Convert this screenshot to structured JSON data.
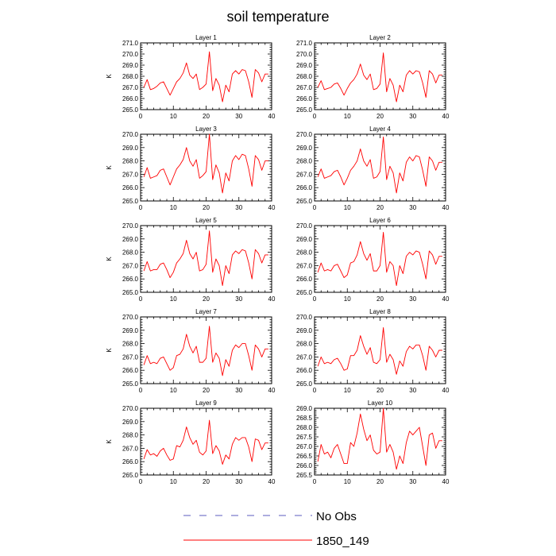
{
  "figure": {
    "title": "soil temperature"
  },
  "legend": {
    "items": [
      {
        "label": "No Obs",
        "color": "#5b5bbf",
        "style": "dashed"
      },
      {
        "label": "1850_149",
        "color": "#ff0000",
        "style": "solid"
      }
    ]
  },
  "chart_data": [
    {
      "type": "line",
      "title": "Layer 1",
      "xlabel": "",
      "ylabel": "K",
      "xlim": [
        0,
        40
      ],
      "ylim": [
        265,
        271
      ],
      "xticks": [
        0,
        10,
        20,
        30,
        40
      ],
      "yticks": [
        265.0,
        266.0,
        267.0,
        268.0,
        269.0,
        270.0,
        271.0
      ],
      "series": [
        {
          "color": "#ff0000",
          "x": [
            1,
            2,
            3,
            4,
            5,
            6,
            7,
            8,
            9,
            10,
            11,
            12,
            13,
            14,
            15,
            16,
            17,
            18,
            19,
            20,
            21,
            22,
            23,
            24,
            25,
            26,
            27,
            28,
            29,
            30,
            31,
            32,
            33,
            34,
            35,
            36,
            37,
            38,
            39
          ],
          "y": [
            267.0,
            267.7,
            266.8,
            266.9,
            267.1,
            267.4,
            267.5,
            266.9,
            266.3,
            266.9,
            267.5,
            267.8,
            268.3,
            269.2,
            268.1,
            267.8,
            268.2,
            266.8,
            267.0,
            267.3,
            270.2,
            266.7,
            267.8,
            267.2,
            265.7,
            267.2,
            266.6,
            268.2,
            268.5,
            268.2,
            268.6,
            268.5,
            267.5,
            266.1,
            268.6,
            268.3,
            267.5,
            268.2,
            268.2
          ]
        }
      ]
    },
    {
      "type": "line",
      "title": "Layer 2",
      "xlabel": "",
      "ylabel": "",
      "xlim": [
        0,
        40
      ],
      "ylim": [
        265,
        271
      ],
      "xticks": [
        0,
        10,
        20,
        30,
        40
      ],
      "yticks": [
        265.0,
        266.0,
        267.0,
        268.0,
        269.0,
        270.0,
        271.0
      ],
      "series": [
        {
          "color": "#ff0000",
          "x": [
            1,
            2,
            3,
            4,
            5,
            6,
            7,
            8,
            9,
            10,
            11,
            12,
            13,
            14,
            15,
            16,
            17,
            18,
            19,
            20,
            21,
            22,
            23,
            24,
            25,
            26,
            27,
            28,
            29,
            30,
            31,
            32,
            33,
            34,
            35,
            36,
            37,
            38,
            39
          ],
          "y": [
            267.0,
            267.6,
            266.8,
            266.9,
            267.0,
            267.3,
            267.4,
            266.9,
            266.3,
            266.9,
            267.4,
            267.7,
            268.2,
            269.1,
            268.1,
            267.7,
            268.2,
            266.8,
            266.9,
            267.3,
            270.1,
            266.6,
            267.8,
            267.2,
            265.7,
            267.2,
            266.6,
            268.1,
            268.5,
            268.2,
            268.5,
            268.4,
            267.4,
            266.1,
            268.5,
            268.2,
            267.4,
            268.1,
            268.1
          ]
        }
      ]
    },
    {
      "type": "line",
      "title": "Layer 3",
      "xlabel": "",
      "ylabel": "K",
      "xlim": [
        0,
        40
      ],
      "ylim": [
        265,
        270
      ],
      "xticks": [
        0,
        10,
        20,
        30,
        40
      ],
      "yticks": [
        265.0,
        266.0,
        267.0,
        268.0,
        269.0,
        270.0
      ],
      "series": [
        {
          "color": "#ff0000",
          "x": [
            1,
            2,
            3,
            4,
            5,
            6,
            7,
            8,
            9,
            10,
            11,
            12,
            13,
            14,
            15,
            16,
            17,
            18,
            19,
            20,
            21,
            22,
            23,
            24,
            25,
            26,
            27,
            28,
            29,
            30,
            31,
            32,
            33,
            34,
            35,
            36,
            37,
            38,
            39
          ],
          "y": [
            266.8,
            267.5,
            266.7,
            266.8,
            266.9,
            267.3,
            267.4,
            266.8,
            266.2,
            266.8,
            267.4,
            267.7,
            268.1,
            269.0,
            268.0,
            267.6,
            268.1,
            266.7,
            266.9,
            267.2,
            270.0,
            266.6,
            267.7,
            267.1,
            265.6,
            267.1,
            266.5,
            268.0,
            268.4,
            268.1,
            268.5,
            268.4,
            267.4,
            266.1,
            268.4,
            268.1,
            267.3,
            268.0,
            268.0
          ]
        }
      ]
    },
    {
      "type": "line",
      "title": "Layer 4",
      "xlabel": "",
      "ylabel": "",
      "xlim": [
        0,
        40
      ],
      "ylim": [
        265,
        270
      ],
      "xticks": [
        0,
        10,
        20,
        30,
        40
      ],
      "yticks": [
        265.0,
        266.0,
        267.0,
        268.0,
        269.0,
        270.0
      ],
      "series": [
        {
          "color": "#ff0000",
          "x": [
            1,
            2,
            3,
            4,
            5,
            6,
            7,
            8,
            9,
            10,
            11,
            12,
            13,
            14,
            15,
            16,
            17,
            18,
            19,
            20,
            21,
            22,
            23,
            24,
            25,
            26,
            27,
            28,
            29,
            30,
            31,
            32,
            33,
            34,
            35,
            36,
            37,
            38,
            39
          ],
          "y": [
            266.8,
            267.4,
            266.7,
            266.8,
            266.9,
            267.2,
            267.3,
            266.8,
            266.2,
            266.7,
            267.3,
            267.6,
            268.0,
            268.9,
            268.0,
            267.6,
            268.1,
            266.7,
            266.8,
            267.2,
            269.8,
            266.6,
            267.6,
            267.1,
            265.6,
            267.1,
            266.5,
            267.9,
            268.3,
            268.0,
            268.4,
            268.3,
            267.3,
            266.1,
            268.3,
            268.0,
            267.3,
            267.9,
            267.9
          ]
        }
      ]
    },
    {
      "type": "line",
      "title": "Layer 5",
      "xlabel": "",
      "ylabel": "K",
      "xlim": [
        0,
        40
      ],
      "ylim": [
        265,
        270
      ],
      "xticks": [
        0,
        10,
        20,
        30,
        40
      ],
      "yticks": [
        265.0,
        266.0,
        267.0,
        268.0,
        269.0,
        270.0
      ],
      "series": [
        {
          "color": "#ff0000",
          "x": [
            1,
            2,
            3,
            4,
            5,
            6,
            7,
            8,
            9,
            10,
            11,
            12,
            13,
            14,
            15,
            16,
            17,
            18,
            19,
            20,
            21,
            22,
            23,
            24,
            25,
            26,
            27,
            28,
            29,
            30,
            31,
            32,
            33,
            34,
            35,
            36,
            37,
            38,
            39
          ],
          "y": [
            266.6,
            267.3,
            266.6,
            266.7,
            266.7,
            267.1,
            267.2,
            266.7,
            266.1,
            266.5,
            267.2,
            267.5,
            267.9,
            268.9,
            267.9,
            267.5,
            268.0,
            266.6,
            266.7,
            267.1,
            269.6,
            266.5,
            267.5,
            267.0,
            265.5,
            267.0,
            266.4,
            267.8,
            268.1,
            267.9,
            268.2,
            268.1,
            267.2,
            266.0,
            268.2,
            267.9,
            267.2,
            267.8,
            267.8
          ]
        }
      ]
    },
    {
      "type": "line",
      "title": "Layer 6",
      "xlabel": "",
      "ylabel": "",
      "xlim": [
        0,
        40
      ],
      "ylim": [
        265,
        270
      ],
      "xticks": [
        0,
        10,
        20,
        30,
        40
      ],
      "yticks": [
        265.0,
        266.0,
        267.0,
        268.0,
        269.0,
        270.0
      ],
      "series": [
        {
          "color": "#ff0000",
          "x": [
            1,
            2,
            3,
            4,
            5,
            6,
            7,
            8,
            9,
            10,
            11,
            12,
            13,
            14,
            15,
            16,
            17,
            18,
            19,
            20,
            21,
            22,
            23,
            24,
            25,
            26,
            27,
            28,
            29,
            30,
            31,
            32,
            33,
            34,
            35,
            36,
            37,
            38,
            39
          ],
          "y": [
            266.5,
            267.2,
            266.6,
            266.7,
            266.6,
            267.0,
            267.1,
            266.6,
            266.1,
            266.3,
            267.2,
            267.3,
            267.8,
            268.8,
            267.9,
            267.4,
            267.9,
            266.6,
            266.6,
            267.0,
            269.5,
            266.5,
            267.3,
            267.0,
            265.5,
            267.0,
            266.4,
            267.7,
            268.0,
            267.8,
            268.1,
            268.0,
            267.1,
            266.0,
            268.1,
            267.8,
            267.1,
            267.7,
            267.7
          ]
        }
      ]
    },
    {
      "type": "line",
      "title": "Layer 7",
      "xlabel": "",
      "ylabel": "K",
      "xlim": [
        0,
        40
      ],
      "ylim": [
        265,
        270
      ],
      "xticks": [
        0,
        10,
        20,
        30,
        40
      ],
      "yticks": [
        265.0,
        266.0,
        267.0,
        268.0,
        269.0,
        270.0
      ],
      "series": [
        {
          "color": "#ff0000",
          "x": [
            1,
            2,
            3,
            4,
            5,
            6,
            7,
            8,
            9,
            10,
            11,
            12,
            13,
            14,
            15,
            16,
            17,
            18,
            19,
            20,
            21,
            22,
            23,
            24,
            25,
            26,
            27,
            28,
            29,
            30,
            31,
            32,
            33,
            34,
            35,
            36,
            37,
            38,
            39
          ],
          "y": [
            266.4,
            267.1,
            266.5,
            266.6,
            266.5,
            266.9,
            267.0,
            266.5,
            266.0,
            266.2,
            267.1,
            267.2,
            267.6,
            268.7,
            267.8,
            267.3,
            267.8,
            266.6,
            266.6,
            266.9,
            269.3,
            266.6,
            267.3,
            266.9,
            265.6,
            266.8,
            266.3,
            267.5,
            267.9,
            267.7,
            268.0,
            268.0,
            267.1,
            266.0,
            267.9,
            267.6,
            267.0,
            267.6,
            267.6
          ]
        }
      ]
    },
    {
      "type": "line",
      "title": "Layer 8",
      "xlabel": "",
      "ylabel": "",
      "xlim": [
        0,
        40
      ],
      "ylim": [
        265,
        270
      ],
      "xticks": [
        0,
        10,
        20,
        30,
        40
      ],
      "yticks": [
        265.0,
        266.0,
        267.0,
        268.0,
        269.0,
        270.0
      ],
      "series": [
        {
          "color": "#ff0000",
          "x": [
            1,
            2,
            3,
            4,
            5,
            6,
            7,
            8,
            9,
            10,
            11,
            12,
            13,
            14,
            15,
            16,
            17,
            18,
            19,
            20,
            21,
            22,
            23,
            24,
            25,
            26,
            27,
            28,
            29,
            30,
            31,
            32,
            33,
            34,
            35,
            36,
            37,
            38,
            39
          ],
          "y": [
            266.3,
            267.0,
            266.5,
            266.6,
            266.5,
            266.8,
            266.9,
            266.5,
            266.0,
            266.1,
            267.1,
            267.1,
            267.5,
            268.6,
            267.8,
            267.2,
            267.7,
            266.6,
            266.5,
            266.8,
            269.2,
            266.6,
            267.2,
            266.8,
            265.7,
            266.7,
            266.3,
            267.4,
            267.8,
            267.6,
            267.9,
            267.9,
            267.1,
            266.0,
            267.8,
            267.5,
            267.0,
            267.5,
            267.5
          ]
        }
      ]
    },
    {
      "type": "line",
      "title": "Layer 9",
      "xlabel": "",
      "ylabel": "K",
      "xlim": [
        0,
        40
      ],
      "ylim": [
        265,
        270
      ],
      "xticks": [
        0,
        10,
        20,
        30,
        40
      ],
      "yticks": [
        265.0,
        266.0,
        267.0,
        268.0,
        269.0,
        270.0
      ],
      "series": [
        {
          "color": "#ff0000",
          "x": [
            1,
            2,
            3,
            4,
            5,
            6,
            7,
            8,
            9,
            10,
            11,
            12,
            13,
            14,
            15,
            16,
            17,
            18,
            19,
            20,
            21,
            22,
            23,
            24,
            25,
            26,
            27,
            28,
            29,
            30,
            31,
            32,
            33,
            34,
            35,
            36,
            37,
            38,
            39
          ],
          "y": [
            266.2,
            266.9,
            266.5,
            266.6,
            266.4,
            266.8,
            267.0,
            266.5,
            266.1,
            266.2,
            267.2,
            267.1,
            267.6,
            268.6,
            267.8,
            267.3,
            267.6,
            266.7,
            266.5,
            266.8,
            269.1,
            266.6,
            267.2,
            266.8,
            265.8,
            266.5,
            266.2,
            267.3,
            267.8,
            267.6,
            267.8,
            267.8,
            267.1,
            266.0,
            267.7,
            267.6,
            266.9,
            267.4,
            267.4
          ]
        }
      ]
    },
    {
      "type": "line",
      "title": "Layer 10",
      "xlabel": "",
      "ylabel": "",
      "xlim": [
        0,
        40
      ],
      "ylim": [
        265.5,
        269
      ],
      "xticks": [
        0,
        10,
        20,
        30,
        40
      ],
      "yticks": [
        265.5,
        266.0,
        266.5,
        267.0,
        267.5,
        268.0,
        268.5,
        269.0
      ],
      "series": [
        {
          "color": "#ff0000",
          "x": [
            1,
            2,
            3,
            4,
            5,
            6,
            7,
            8,
            9,
            10,
            11,
            12,
            13,
            14,
            15,
            16,
            17,
            18,
            19,
            20,
            21,
            22,
            23,
            24,
            25,
            26,
            27,
            28,
            29,
            30,
            31,
            32,
            33,
            34,
            35,
            36,
            37,
            38,
            39
          ],
          "y": [
            266.2,
            267.1,
            266.6,
            266.7,
            266.4,
            266.9,
            267.1,
            266.6,
            266.1,
            266.1,
            267.2,
            267.0,
            267.7,
            268.7,
            267.9,
            267.3,
            267.6,
            266.8,
            266.6,
            266.7,
            269.0,
            266.7,
            267.1,
            266.7,
            265.8,
            266.5,
            266.1,
            267.2,
            267.8,
            267.6,
            267.8,
            268.0,
            267.0,
            266.0,
            267.6,
            267.7,
            266.9,
            267.3,
            267.3
          ]
        }
      ]
    }
  ]
}
